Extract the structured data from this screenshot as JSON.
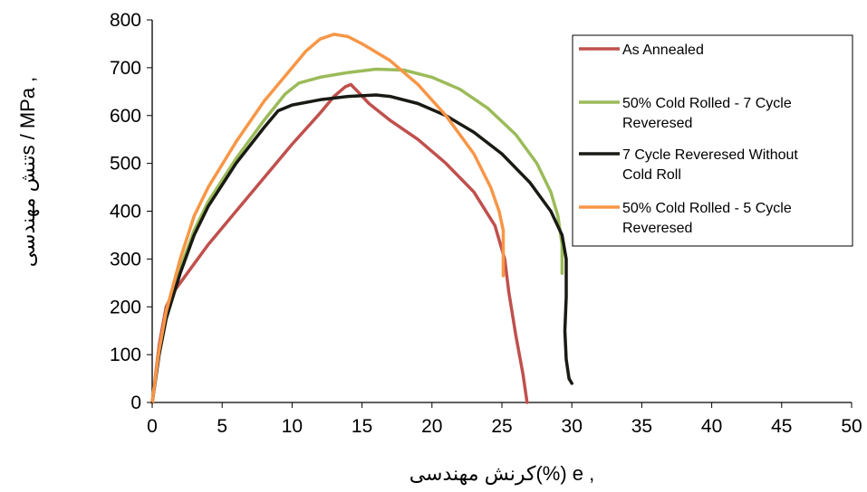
{
  "chart_data": {
    "type": "line",
    "xlabel": "کرنش مهندسی(%) e ,",
    "ylabel": "تنش مهندسیs / MPa ,",
    "xlim": [
      0,
      50
    ],
    "ylim": [
      0,
      800
    ],
    "xticks": [
      0,
      5,
      10,
      15,
      20,
      25,
      30,
      35,
      40,
      45,
      50
    ],
    "yticks": [
      0,
      100,
      200,
      300,
      400,
      500,
      600,
      700,
      800
    ],
    "grid": false,
    "legend_position": "top-right",
    "series": [
      {
        "name": "As Annealed",
        "color": "#c0504d",
        "points": [
          [
            0,
            0
          ],
          [
            0.5,
            120
          ],
          [
            1,
            200
          ],
          [
            1.5,
            230
          ],
          [
            2,
            250
          ],
          [
            3,
            290
          ],
          [
            4,
            330
          ],
          [
            6,
            400
          ],
          [
            8,
            470
          ],
          [
            10,
            540
          ],
          [
            12,
            605
          ],
          [
            13,
            640
          ],
          [
            13.8,
            660
          ],
          [
            14.2,
            665
          ],
          [
            14.7,
            650
          ],
          [
            15.5,
            625
          ],
          [
            17,
            590
          ],
          [
            19,
            550
          ],
          [
            21,
            500
          ],
          [
            23,
            440
          ],
          [
            24.5,
            370
          ],
          [
            25.2,
            300
          ],
          [
            25.5,
            230
          ],
          [
            26,
            140
          ],
          [
            26.5,
            60
          ],
          [
            26.8,
            0
          ]
        ]
      },
      {
        "name": "50% Cold Rolled - 7 Cycle Revere",
        "color": "#9bbb59",
        "points": [
          [
            0,
            0
          ],
          [
            0.5,
            110
          ],
          [
            1,
            180
          ],
          [
            2,
            280
          ],
          [
            3,
            360
          ],
          [
            4,
            420
          ],
          [
            6,
            510
          ],
          [
            8,
            590
          ],
          [
            9.5,
            645
          ],
          [
            10.5,
            668
          ],
          [
            12,
            680
          ],
          [
            14,
            690
          ],
          [
            16,
            697
          ],
          [
            18,
            695
          ],
          [
            20,
            680
          ],
          [
            22,
            655
          ],
          [
            24,
            615
          ],
          [
            26,
            560
          ],
          [
            27.5,
            500
          ],
          [
            28.5,
            440
          ],
          [
            29,
            390
          ],
          [
            29.3,
            330
          ],
          [
            29.3,
            270
          ]
        ]
      },
      {
        "name": "7 Cycle Revere Without Cold Roll",
        "color": "#1a1a14",
        "points": [
          [
            0,
            0
          ],
          [
            0.5,
            100
          ],
          [
            1,
            175
          ],
          [
            2,
            270
          ],
          [
            3,
            350
          ],
          [
            4,
            410
          ],
          [
            6,
            500
          ],
          [
            8,
            575
          ],
          [
            9,
            610
          ],
          [
            10,
            622
          ],
          [
            12,
            633
          ],
          [
            14,
            640
          ],
          [
            16,
            643
          ],
          [
            17,
            640
          ],
          [
            19,
            625
          ],
          [
            21,
            600
          ],
          [
            23,
            565
          ],
          [
            25,
            520
          ],
          [
            27,
            460
          ],
          [
            28.5,
            400
          ],
          [
            29.3,
            350
          ],
          [
            29.6,
            300
          ],
          [
            29.6,
            220
          ],
          [
            29.5,
            150
          ],
          [
            29.6,
            90
          ],
          [
            29.8,
            50
          ],
          [
            30,
            40
          ]
        ]
      },
      {
        "name": "50% Cold Rolled - 5 Cycle Revere",
        "color": "#f79646",
        "points": [
          [
            0,
            0
          ],
          [
            0.5,
            110
          ],
          [
            1,
            190
          ],
          [
            2,
            300
          ],
          [
            3,
            390
          ],
          [
            4,
            450
          ],
          [
            6,
            545
          ],
          [
            8,
            630
          ],
          [
            10,
            700
          ],
          [
            11,
            735
          ],
          [
            12,
            760
          ],
          [
            13,
            770
          ],
          [
            14,
            765
          ],
          [
            15,
            750
          ],
          [
            17,
            715
          ],
          [
            19,
            665
          ],
          [
            21,
            600
          ],
          [
            23,
            520
          ],
          [
            24.2,
            450
          ],
          [
            24.8,
            400
          ],
          [
            25.1,
            360
          ],
          [
            25.1,
            265
          ]
        ]
      }
    ]
  },
  "legend": {
    "entries": [
      [
        "As Annealed"
      ],
      [
        "50% Cold Rolled - 7 Cycle",
        "Reveresed"
      ],
      [
        "7 Cycle Reveresed Without",
        "Cold Roll"
      ],
      [
        "50% Cold Rolled - 5 Cycle",
        "Reveresed"
      ]
    ]
  }
}
